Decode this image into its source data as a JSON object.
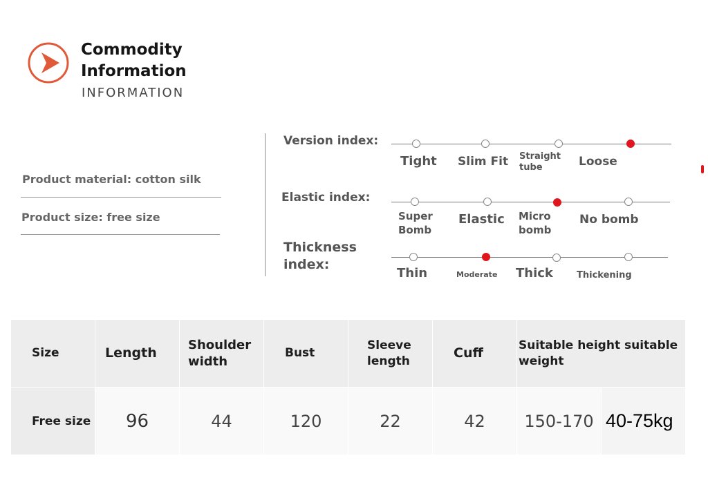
{
  "header": {
    "icon": "play-arrow-icon",
    "accent_color": "#e05a3a",
    "title_line1": "Commodity",
    "title_line2": "Information",
    "subtitle": "INFORMATION"
  },
  "product": {
    "material": "Product material: cotton silk",
    "size": "Product size: free size"
  },
  "indexes": {
    "active_color": "#e0161d",
    "version": {
      "label": "Version index:",
      "options": [
        "Tight",
        "Slim Fit",
        "Straight tube",
        "Loose"
      ],
      "selected": "Loose"
    },
    "elastic": {
      "label": "Elastic index:",
      "options": [
        "Super Bomb",
        "Elastic",
        "Micro bomb",
        "No bomb"
      ],
      "selected": "Micro bomb"
    },
    "thickness": {
      "label": "Thickness index:",
      "options": [
        "Thin",
        "Moderate",
        "Thick",
        "Thickening"
      ],
      "selected": "Moderate"
    }
  },
  "size_table": {
    "headers": [
      "Size",
      "Length",
      "Shoulder width",
      "Bust",
      "Sleeve length",
      "Cuff",
      "Suitable height suitable weight"
    ],
    "rows": [
      [
        "Free size",
        "96",
        "44",
        "120",
        "22",
        "42",
        "150-170",
        "40-75kg"
      ]
    ]
  }
}
